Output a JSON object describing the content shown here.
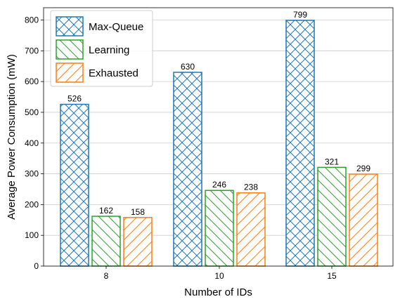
{
  "chart_data": {
    "type": "bar",
    "categories": [
      "8",
      "10",
      "15"
    ],
    "series": [
      {
        "name": "Max-Queue",
        "values": [
          526,
          630,
          799
        ],
        "color": "#1f77b4",
        "hatch": "cross"
      },
      {
        "name": "Learning",
        "values": [
          162,
          246,
          321
        ],
        "color": "#2ca02c",
        "hatch": "backslash"
      },
      {
        "name": "Exhausted",
        "values": [
          158,
          238,
          299
        ],
        "color": "#ff7f0e",
        "hatch": "slash"
      }
    ],
    "title": "",
    "xlabel": "Number of IDs",
    "ylabel": "Average Power Consumption (mW)",
    "ylim": [
      0,
      840
    ],
    "yticks": [
      0,
      100,
      200,
      300,
      400,
      500,
      600,
      700,
      800
    ],
    "grid": "horizontal",
    "legend_position": "top-left",
    "data_labels": true
  }
}
